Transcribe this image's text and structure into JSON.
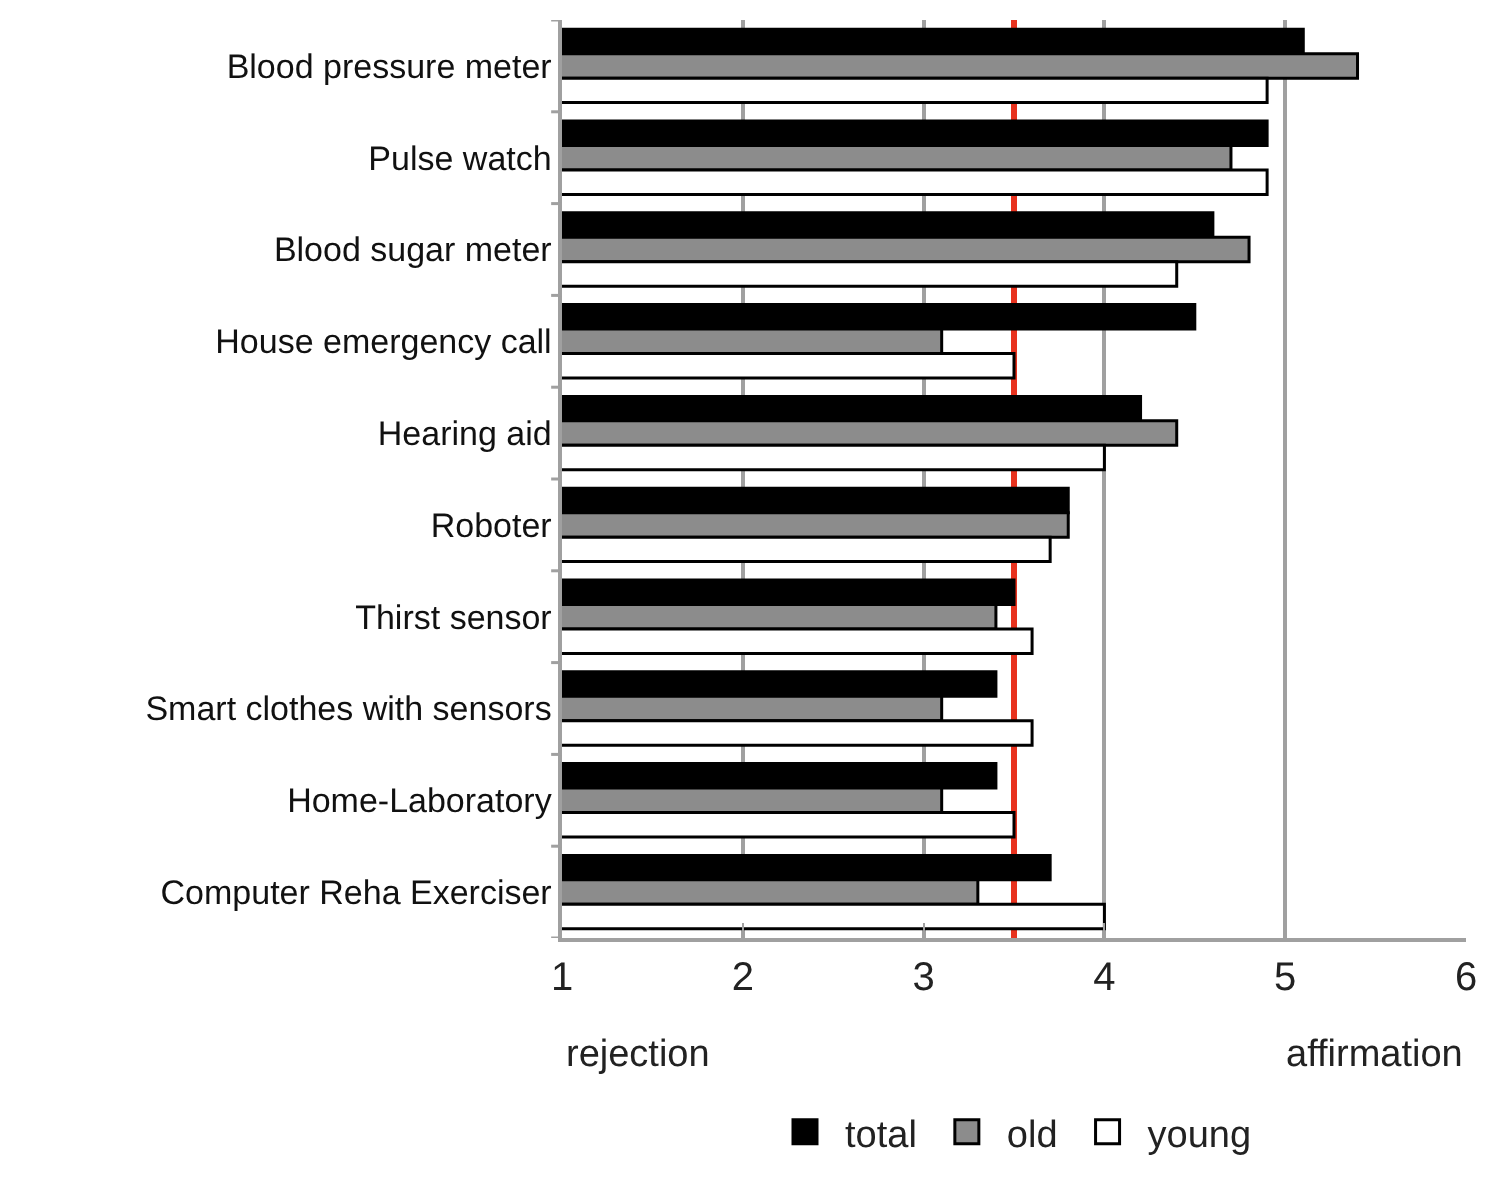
{
  "chart_data": {
    "type": "bar",
    "orientation": "horizontal",
    "categories": [
      "Blood pressure meter",
      "Pulse watch",
      "Blood sugar meter",
      "House emergency call",
      "Hearing aid",
      "Roboter",
      "Thirst sensor",
      "Smart clothes with sensors",
      "Home-Laboratory",
      "Computer Reha Exerciser"
    ],
    "series": [
      {
        "name": "total",
        "color": "#000000",
        "values": [
          5.1,
          4.9,
          4.6,
          4.5,
          4.2,
          3.8,
          3.5,
          3.4,
          3.4,
          3.7
        ]
      },
      {
        "name": "old",
        "color": "#8c8c8c",
        "values": [
          5.4,
          4.7,
          4.8,
          3.1,
          4.4,
          3.8,
          3.4,
          3.1,
          3.1,
          3.3
        ]
      },
      {
        "name": "young",
        "color": "#ffffff",
        "values": [
          4.9,
          4.9,
          4.4,
          3.5,
          4.0,
          3.7,
          3.6,
          3.6,
          3.5,
          4.0
        ]
      }
    ],
    "xlim": [
      1,
      6
    ],
    "xticks": [
      1,
      2,
      3,
      4,
      5,
      6
    ],
    "grid": "x",
    "legend": "bottom",
    "ref_lines": [
      {
        "axis": "x",
        "value": 3.5,
        "color": "#e8321e"
      }
    ],
    "annotations": [
      "rejection",
      "affirmation"
    ]
  }
}
